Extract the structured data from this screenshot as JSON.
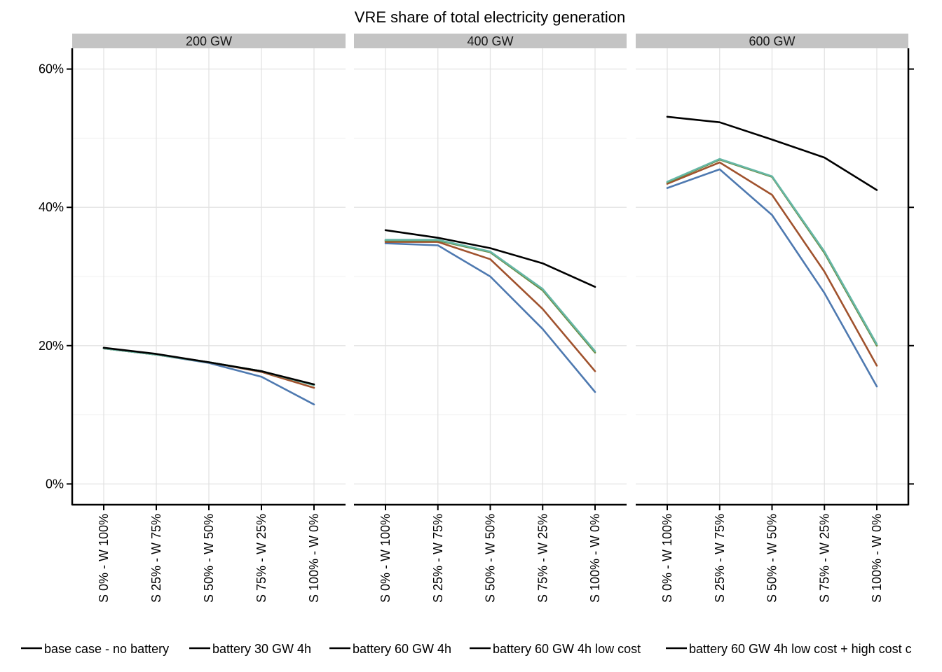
{
  "chart_data": {
    "type": "line",
    "title": "VRE share of total electricity generation",
    "xlabel": "",
    "ylabel": "",
    "ylim": [
      -0.03,
      0.63
    ],
    "y_ticks": [
      0,
      0.2,
      0.4,
      0.6
    ],
    "y_tick_labels": [
      "0%",
      "20%",
      "40%",
      "60%"
    ],
    "categories": [
      "S 0% - W 100%",
      "S 25% - W 75%",
      "S 50% - W 50%",
      "S 75% - W 25%",
      "S 100% - W 0%"
    ],
    "grid": true,
    "legend_position": "bottom",
    "legend": [
      "base case - no battery",
      "battery 30 GW 4h",
      "battery 60 GW 4h",
      "battery 60 GW 4h low cost",
      "battery 60 GW 4h low cost + high cost c"
    ],
    "panels": [
      {
        "label": "200 GW",
        "series": [
          {
            "color": "#4e79b0",
            "values": [
              0.196,
              0.187,
              0.175,
              0.155,
              0.115
            ]
          },
          {
            "color": "#a0522d",
            "values": [
              0.196,
              0.187,
              0.176,
              0.162,
              0.139
            ]
          },
          {
            "color": "#6a8a40",
            "values": [
              0.196,
              0.187,
              0.176,
              0.163,
              0.143
            ]
          },
          {
            "color": "#66b7a6",
            "values": [
              0.196,
              0.187,
              0.176,
              0.163,
              0.143
            ]
          },
          {
            "color": "#000000",
            "values": [
              0.197,
              0.188,
              0.176,
              0.163,
              0.144
            ]
          }
        ]
      },
      {
        "label": "400 GW",
        "series": [
          {
            "color": "#4e79b0",
            "values": [
              0.348,
              0.345,
              0.3,
              0.224,
              0.133
            ]
          },
          {
            "color": "#a0522d",
            "values": [
              0.35,
              0.35,
              0.325,
              0.253,
              0.163
            ]
          },
          {
            "color": "#6a8a40",
            "values": [
              0.352,
              0.352,
              0.335,
              0.28,
              0.19
            ]
          },
          {
            "color": "#66b7a6",
            "values": [
              0.353,
              0.353,
              0.336,
              0.282,
              0.192
            ]
          },
          {
            "color": "#000000",
            "values": [
              0.367,
              0.356,
              0.341,
              0.319,
              0.285
            ]
          }
        ]
      },
      {
        "label": "600 GW",
        "series": [
          {
            "color": "#4e79b0",
            "values": [
              0.428,
              0.455,
              0.389,
              0.276,
              0.141
            ]
          },
          {
            "color": "#a0522d",
            "values": [
              0.434,
              0.465,
              0.418,
              0.307,
              0.171
            ]
          },
          {
            "color": "#6a8a40",
            "values": [
              0.436,
              0.469,
              0.444,
              0.334,
              0.2
            ]
          },
          {
            "color": "#66b7a6",
            "values": [
              0.437,
              0.47,
              0.445,
              0.336,
              0.202
            ]
          },
          {
            "color": "#000000",
            "values": [
              0.531,
              0.523,
              0.498,
              0.472,
              0.425
            ]
          }
        ]
      }
    ]
  }
}
